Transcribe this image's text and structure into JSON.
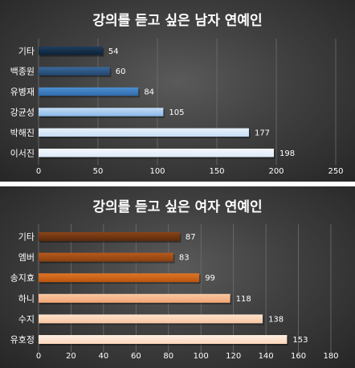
{
  "chart_data": [
    {
      "type": "bar",
      "orientation": "horizontal",
      "title": "강의를 듣고 싶은 남자 연예인",
      "xlabel": "",
      "ylabel": "",
      "categories": [
        "기타",
        "백종원",
        "유병재",
        "강균성",
        "박해진",
        "이서진"
      ],
      "values": [
        54,
        60,
        84,
        105,
        177,
        198
      ],
      "xlim": [
        0,
        250
      ],
      "ticks": [
        0,
        50,
        100,
        150,
        200,
        250
      ],
      "grid": true,
      "legend": "none",
      "background": "#3a3a3a",
      "colors": [
        [
          "#0d2236",
          "#1e3d5e"
        ],
        [
          "#22456d",
          "#3a699c"
        ],
        [
          "#2f6bab",
          "#4d8fd1"
        ],
        [
          "#8ab8e8",
          "#c4dcf5"
        ],
        [
          "#c6ddf4",
          "#e7f1fb"
        ],
        [
          "#dce9f7",
          "#f4f8fd"
        ]
      ]
    },
    {
      "type": "bar",
      "orientation": "horizontal",
      "title": "강의를 듣고 싶은 여자 연예인",
      "xlabel": "",
      "ylabel": "",
      "categories": [
        "기타",
        "엠버",
        "송지효",
        "하니",
        "수지",
        "유호정"
      ],
      "values": [
        87,
        83,
        99,
        118,
        138,
        153
      ],
      "xlim": [
        0,
        180
      ],
      "ticks": [
        0,
        20,
        40,
        60,
        80,
        100,
        120,
        140,
        160,
        180
      ],
      "grid": true,
      "legend": "none",
      "background": "#3a3a3a",
      "colors": [
        [
          "#5a2a0c",
          "#8a4318"
        ],
        [
          "#8a3f10",
          "#b55a1c"
        ],
        [
          "#b8540f",
          "#df7426"
        ],
        [
          "#f2a575",
          "#f9c8a3"
        ],
        [
          "#f7c6a2",
          "#fde3cd"
        ],
        [
          "#fad6bb",
          "#fff0e4"
        ]
      ]
    }
  ]
}
